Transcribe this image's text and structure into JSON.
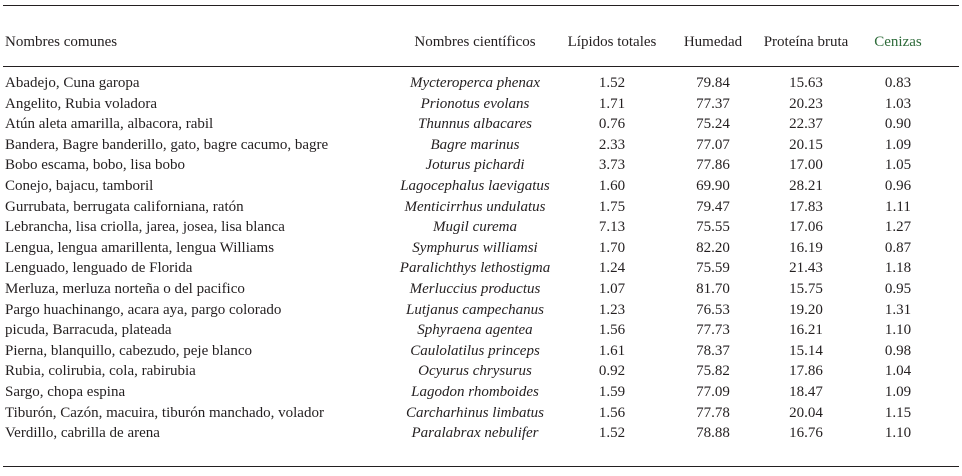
{
  "table": {
    "headers": {
      "common": "Nombres comunes",
      "scientific": "Nombres científicos",
      "lipids": "Lípidos totales",
      "humidity": "Humedad",
      "protein": "Proteína bruta",
      "ash": "Cenizas"
    },
    "rows": [
      {
        "common": "Abadejo, Cuna garopa",
        "scientific": "Mycteroperca phenax",
        "lipids": "1.52",
        "humidity": "79.84",
        "protein": "15.63",
        "ash": "0.83"
      },
      {
        "common": "Angelito, Rubia voladora",
        "scientific": "Prionotus evolans",
        "lipids": "1.71",
        "humidity": "77.37",
        "protein": "20.23",
        "ash": "1.03"
      },
      {
        "common": "Atún aleta amarilla, albacora, rabil",
        "scientific": "Thunnus albacares",
        "lipids": "0.76",
        "humidity": "75.24",
        "protein": "22.37",
        "ash": "0.90"
      },
      {
        "common": "Bandera, Bagre banderillo, gato, bagre cacumo, bagre",
        "scientific": "Bagre marinus",
        "lipids": "2.33",
        "humidity": "77.07",
        "protein": "20.15",
        "ash": "1.09"
      },
      {
        "common": "Bobo escama, bobo, lisa bobo",
        "scientific": "Joturus pichardi",
        "lipids": "3.73",
        "humidity": "77.86",
        "protein": "17.00",
        "ash": "1.05"
      },
      {
        "common": "Conejo, bajacu, tamboril",
        "scientific": "Lagocephalus laevigatus",
        "lipids": "1.60",
        "humidity": "69.90",
        "protein": "28.21",
        "ash": "0.96"
      },
      {
        "common": "Gurrubata, berrugata californiana, ratón",
        "scientific": "Menticirrhus undulatus",
        "lipids": "1.75",
        "humidity": "79.47",
        "protein": "17.83",
        "ash": "1.11"
      },
      {
        "common": "Lebrancha, lisa criolla, jarea, josea, lisa blanca",
        "scientific": "Mugil curema",
        "lipids": "7.13",
        "humidity": "75.55",
        "protein": "17.06",
        "ash": "1.27"
      },
      {
        "common": "Lengua, lengua amarillenta, lengua Williams",
        "scientific": "Symphurus williamsi",
        "lipids": "1.70",
        "humidity": "82.20",
        "protein": "16.19",
        "ash": "0.87"
      },
      {
        "common": "Lenguado, lenguado de Florida",
        "scientific": "Paralichthys lethostigma",
        "lipids": "1.24",
        "humidity": "75.59",
        "protein": "21.43",
        "ash": "1.18"
      },
      {
        "common": "Merluza, merluza norteña o del pacifico",
        "scientific": "Merluccius productus",
        "lipids": "1.07",
        "humidity": "81.70",
        "protein": "15.75",
        "ash": "0.95"
      },
      {
        "common": "Pargo huachinango, acara aya, pargo colorado",
        "scientific": "Lutjanus campechanus",
        "lipids": "1.23",
        "humidity": "76.53",
        "protein": "19.20",
        "ash": "1.31"
      },
      {
        "common": "picuda, Barracuda, plateada",
        "scientific": "Sphyraena agentea",
        "lipids": "1.56",
        "humidity": "77.73",
        "protein": "16.21",
        "ash": "1.10"
      },
      {
        "common": "Pierna, blanquillo, cabezudo, peje blanco",
        "scientific": "Caulolatilus princeps",
        "lipids": "1.61",
        "humidity": "78.37",
        "protein": "15.14",
        "ash": "0.98"
      },
      {
        "common": "Rubia, colirubia, cola, rabirubia",
        "scientific": "Ocyurus chrysurus",
        "lipids": "0.92",
        "humidity": "75.82",
        "protein": "17.86",
        "ash": "1.04"
      },
      {
        "common": "Sargo, chopa espina",
        "scientific": "Lagodon rhomboides",
        "lipids": "1.59",
        "humidity": "77.09",
        "protein": "18.47",
        "ash": "1.09"
      },
      {
        "common": "Tiburón, Cazón, macuira, tiburón manchado, volador",
        "scientific": "Carcharhinus limbatus",
        "lipids": "1.56",
        "humidity": "77.78",
        "protein": "20.04",
        "ash": "1.15"
      },
      {
        "common": "Verdillo, cabrilla de arena",
        "scientific": "Paralabrax nebulifer",
        "lipids": "1.52",
        "humidity": "78.88",
        "protein": "16.76",
        "ash": "1.10"
      }
    ]
  },
  "colors": {
    "text": "#231f20",
    "ash_header": "#2e6b3a"
  }
}
